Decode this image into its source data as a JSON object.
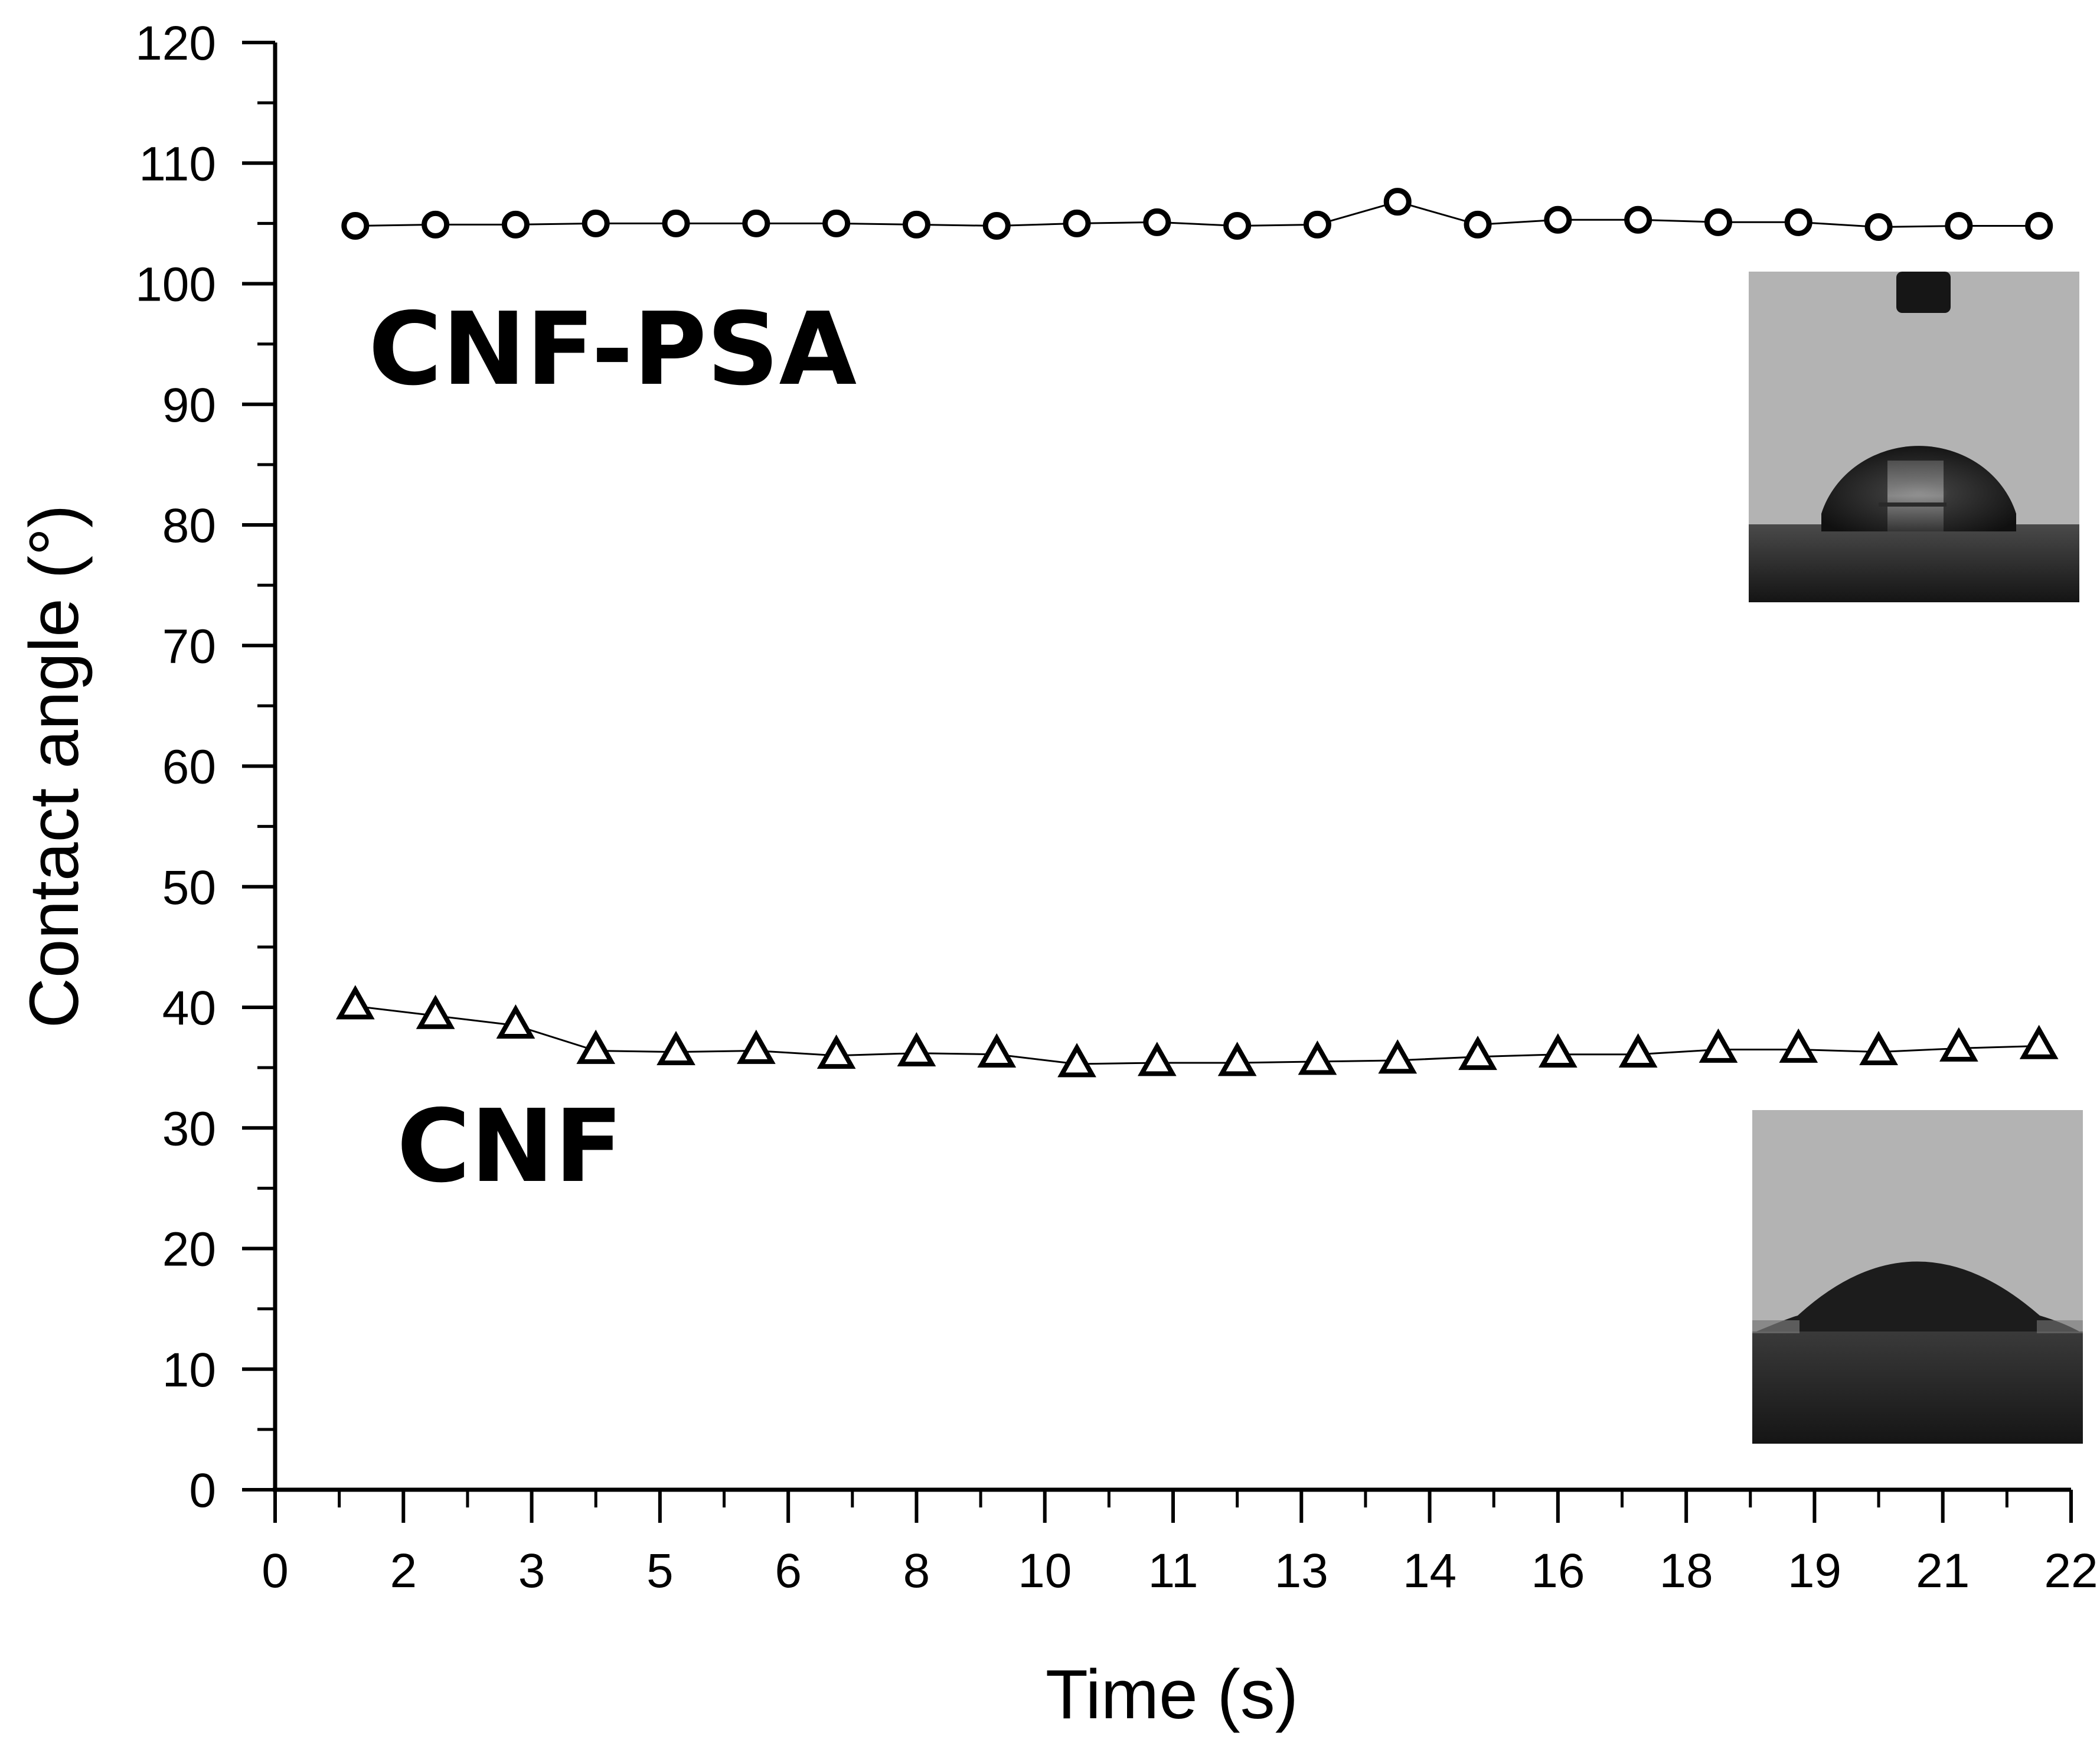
{
  "chart_data": {
    "type": "scatter",
    "title": "",
    "xlabel": "Time (s)",
    "ylabel": "Contact angle (°)",
    "xlim": [
      0,
      22.4
    ],
    "ylim": [
      0,
      120
    ],
    "x_tick_labels": [
      "0",
      "2",
      "3",
      "5",
      "6",
      "8",
      "10",
      "11",
      "13",
      "14",
      "16",
      "18",
      "19",
      "21",
      "22"
    ],
    "y_tick_labels": [
      "0",
      "10",
      "20",
      "30",
      "40",
      "50",
      "60",
      "70",
      "80",
      "90",
      "100",
      "110",
      "120"
    ],
    "x": [
      1.0,
      2.0,
      3.0,
      4.0,
      5.0,
      6.0,
      7.0,
      8.0,
      9.0,
      10.0,
      11.0,
      12.0,
      13.0,
      14.0,
      15.0,
      16.0,
      17.0,
      18.0,
      19.0,
      20.0,
      21.0,
      22.0
    ],
    "series": [
      {
        "name": "CNF-PSA",
        "marker": "circle",
        "values": [
          104.8,
          104.9,
          104.9,
          105.0,
          105.0,
          105.0,
          105.0,
          104.9,
          104.8,
          105.0,
          105.1,
          104.8,
          104.9,
          106.8,
          104.9,
          105.3,
          105.3,
          105.1,
          105.1,
          104.7,
          104.8,
          104.8
        ]
      },
      {
        "name": "CNF",
        "marker": "triangle",
        "values": [
          40.1,
          39.3,
          38.5,
          36.4,
          36.3,
          36.4,
          36.0,
          36.2,
          36.1,
          35.3,
          35.4,
          35.4,
          35.5,
          35.6,
          35.9,
          36.1,
          36.1,
          36.5,
          36.5,
          36.3,
          36.6,
          36.8
        ]
      }
    ],
    "grid": false,
    "legend": "none",
    "colors": {
      "axis": "#000000",
      "markers": "#000000"
    },
    "insets": [
      {
        "name": "droplet-photo-cnf-psa",
        "near_series": "CNF-PSA",
        "content": "high contact angle droplet with dispensing needle"
      },
      {
        "name": "droplet-photo-cnf",
        "near_series": "CNF",
        "content": "low contact angle spreading droplet"
      }
    ]
  }
}
